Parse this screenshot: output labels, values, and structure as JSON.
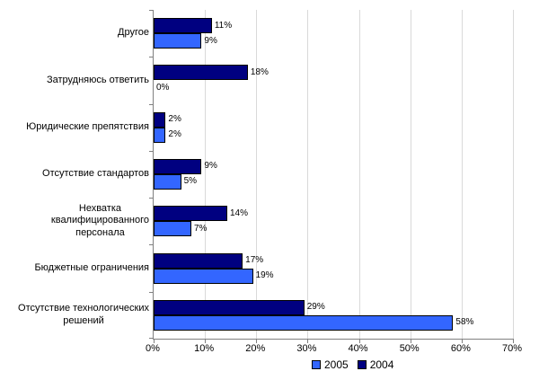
{
  "chart_data": {
    "type": "bar",
    "orientation": "horizontal",
    "title": "",
    "categories": [
      "Другое",
      "Затрудняюсь ответить",
      "Юридические препятствия",
      "Отсутствие стандартов",
      "Нехватка\nквалифицированного\nперсонала",
      "Бюджетные ограничения",
      "Отсутствие технологических\nрешений"
    ],
    "series": [
      {
        "name": "2005",
        "color": "#3366FF",
        "values": [
          9,
          0,
          2,
          5,
          7,
          19,
          58
        ]
      },
      {
        "name": "2004",
        "color": "#000080",
        "values": [
          11,
          18,
          2,
          9,
          14,
          17,
          29
        ]
      }
    ],
    "value_label_suffix": "%",
    "xlim": [
      0,
      70
    ],
    "x_tick_labels": [
      "0%",
      "10%",
      "20%",
      "30%",
      "40%",
      "50%",
      "60%",
      "70%"
    ],
    "grid": true,
    "legend_position": "bottom",
    "colors": {
      "gridline": "#D9D9D9",
      "axis": "#808080",
      "bar_border": "#000000",
      "text": "#000000",
      "background": "#FFFFFF"
    }
  },
  "legend": {
    "items": [
      {
        "label": "2005",
        "color": "#3366FF"
      },
      {
        "label": "2004",
        "color": "#000080"
      }
    ]
  }
}
